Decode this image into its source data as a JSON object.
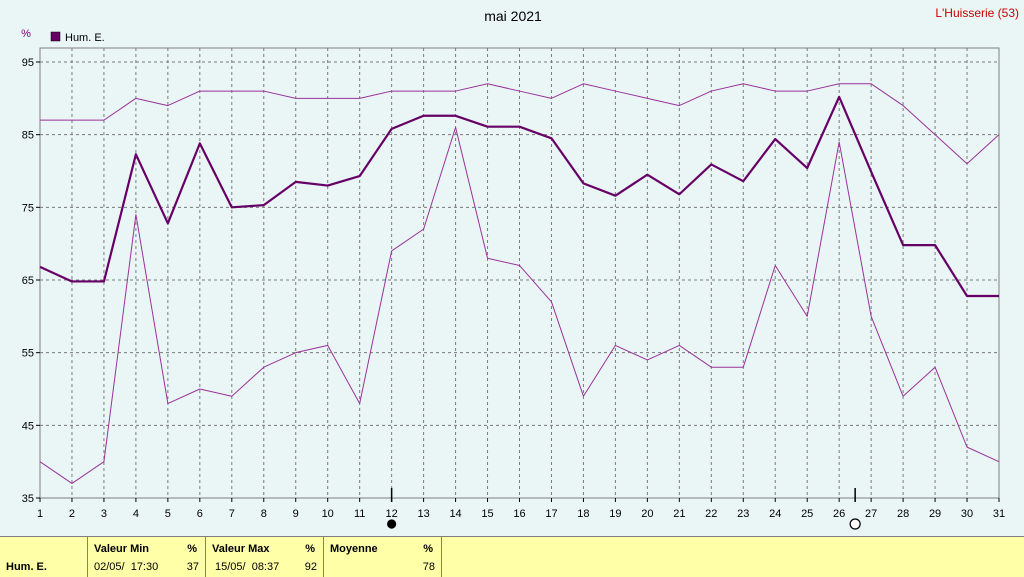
{
  "header": {
    "title": "mai 2021",
    "station": "L'Huisserie (53)",
    "unit": "%"
  },
  "legend": {
    "label": "Hum. E.",
    "color": "#660066"
  },
  "chart_data": {
    "type": "line",
    "title": "mai 2021",
    "ylabel": "%",
    "x": [
      1,
      2,
      3,
      4,
      5,
      6,
      7,
      8,
      9,
      10,
      11,
      12,
      13,
      14,
      15,
      16,
      17,
      18,
      19,
      20,
      21,
      22,
      23,
      24,
      25,
      26,
      27,
      28,
      29,
      30,
      31
    ],
    "xticks": [
      "1",
      "2",
      "3",
      "4",
      "5",
      "6",
      "7",
      "8",
      "9",
      "10",
      "11",
      "12",
      "13",
      "14",
      "15",
      "16",
      "17",
      "18",
      "19",
      "20",
      "21",
      "22",
      "23",
      "24",
      "25",
      "26",
      "27",
      "28",
      "29",
      "30",
      "31"
    ],
    "yticks": [
      "35",
      "45",
      "55",
      "65",
      "75",
      "85",
      "95"
    ],
    "ylim": [
      35,
      95
    ],
    "grid": true,
    "series": [
      {
        "name": "Hum. E.",
        "role": "mean",
        "color": "#660066",
        "values": [
          66.8,
          64.8,
          64.8,
          82.3,
          72.8,
          83.8,
          75,
          75.3,
          78.5,
          78,
          79.3,
          85.8,
          87.6,
          87.6,
          86.1,
          86.1,
          84.5,
          78.3,
          76.6,
          79.5,
          76.8,
          80.9,
          78.6,
          84.4,
          80.4,
          90.2,
          79.9,
          69.8,
          69.8,
          62.8,
          62.8
        ]
      },
      {
        "role": "max",
        "color": "#993399",
        "values": [
          87,
          87,
          87,
          90,
          89,
          91,
          91,
          91,
          90,
          90,
          90,
          91,
          91,
          91,
          92,
          91,
          90,
          92,
          91,
          90,
          89,
          91,
          92,
          91,
          91,
          92,
          92,
          89,
          85,
          81,
          85
        ]
      },
      {
        "role": "min",
        "color": "#993399",
        "values": [
          40,
          37,
          40,
          74,
          48,
          50,
          49,
          53,
          55,
          56,
          48,
          69,
          72,
          86,
          68,
          67,
          62,
          49,
          56,
          54,
          56,
          53,
          53,
          67,
          60,
          84,
          60,
          49,
          53,
          42,
          40
        ]
      }
    ],
    "markers": [
      {
        "day": 12,
        "symbol": "new-moon"
      },
      {
        "day": 26.5,
        "symbol": "full-moon"
      }
    ]
  },
  "footer": {
    "row_label": "Hum. E.",
    "min": {
      "header": "Valeur Min",
      "unit": "%",
      "date": "02/05/  17:30",
      "value": "37"
    },
    "max": {
      "header": "Valeur Max",
      "unit": "%",
      "date": "15/05/  08:37",
      "value": "92"
    },
    "avg": {
      "header": "Moyenne",
      "unit": "%",
      "value": "78"
    }
  }
}
